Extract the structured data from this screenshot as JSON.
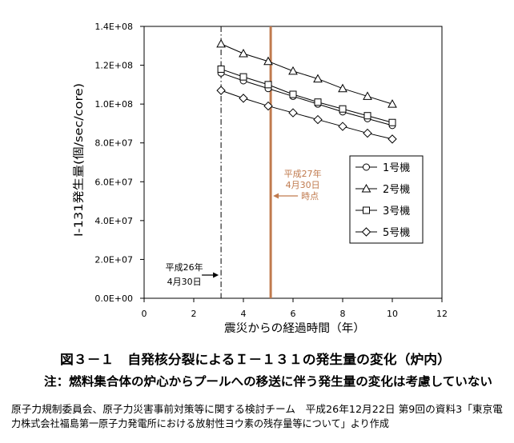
{
  "figure": {
    "note": "注：燃料集合体の炉心からプールへの移送に伴う発生量の変化は考慮していない",
    "source_lines": [
      "原子力規制委員会、原子力災害事前対策等に関する検討チーム　平成26年12月22日 第9回の資料3「東京電",
      "力株式会社福島第一原子力発電所における放射性ヨウ素の残存量等について」より作成"
    ]
  },
  "chart_data": {
    "type": "line",
    "title": "図３－１　自発核分裂によるＩ－１３１の発生量の変化（炉内）",
    "xlabel": "震災からの経過時間（年）",
    "ylabel": "I-131発生量(個/sec/core)",
    "xlim": [
      0,
      12
    ],
    "ylim": [
      0,
      140000000
    ],
    "grid": false,
    "legend": {
      "placement": "right"
    },
    "axis_color": "#000000",
    "x_ticks": [
      {
        "value": 0,
        "label": "0"
      },
      {
        "value": 2,
        "label": "2"
      },
      {
        "value": 4,
        "label": "4"
      },
      {
        "value": 6,
        "label": "6"
      },
      {
        "value": 8,
        "label": "8"
      },
      {
        "value": 10,
        "label": "10"
      },
      {
        "value": 12,
        "label": "12"
      }
    ],
    "y_ticks": [
      {
        "value": 0,
        "label": "0.0E+00"
      },
      {
        "value": 20000000,
        "label": "2.0E+07"
      },
      {
        "value": 40000000,
        "label": "4.0E+07"
      },
      {
        "value": 60000000,
        "label": "6.0E+07"
      },
      {
        "value": 80000000,
        "label": "8.0E+07"
      },
      {
        "value": 100000000,
        "label": "1.0E+08"
      },
      {
        "value": 120000000,
        "label": "1.2E+08"
      },
      {
        "value": 140000000,
        "label": "1.4E+08"
      }
    ],
    "x": [
      3.1,
      4,
      5,
      6,
      7,
      8,
      9,
      10
    ],
    "series": [
      {
        "name": "1号機",
        "marker": "circle",
        "color": "#000000",
        "values": [
          116000000,
          112000000,
          108000000,
          104000000,
          100000000,
          96000000,
          92500000,
          89000000
        ]
      },
      {
        "name": "2号機",
        "marker": "triangle",
        "color": "#000000",
        "values": [
          131000000,
          126000000,
          122000000,
          117000000,
          113000000,
          108000000,
          104000000,
          100000000
        ]
      },
      {
        "name": "3号機",
        "marker": "square",
        "color": "#000000",
        "values": [
          118000000,
          114000000,
          110000000,
          105000000,
          101000000,
          97500000,
          94000000,
          90500000
        ]
      },
      {
        "name": "5号機",
        "marker": "diamond",
        "color": "#000000",
        "values": [
          107000000,
          103000000,
          99000000,
          95500000,
          92000000,
          88500000,
          85000000,
          82000000
        ]
      }
    ],
    "reference_lines": [
      {
        "x": 3.1,
        "style": "dash-dot",
        "color": "#000000",
        "label": [
          "平成26年",
          "4月30日"
        ]
      },
      {
        "x": 5.1,
        "style": "solid",
        "color": "#c07a4e",
        "label": [
          "平成27年",
          "4月30日",
          "時点"
        ]
      }
    ]
  }
}
